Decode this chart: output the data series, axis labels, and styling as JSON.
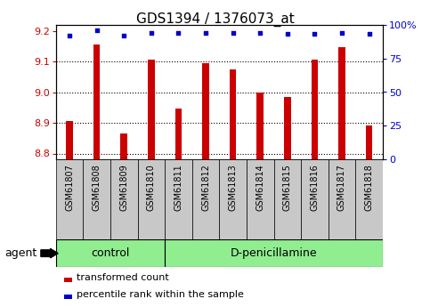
{
  "title": "GDS1394 / 1376073_at",
  "samples": [
    "GSM61807",
    "GSM61808",
    "GSM61809",
    "GSM61810",
    "GSM61811",
    "GSM61812",
    "GSM61813",
    "GSM61814",
    "GSM61815",
    "GSM61816",
    "GSM61817",
    "GSM61818"
  ],
  "transformed_count": [
    8.905,
    9.155,
    8.865,
    9.105,
    8.945,
    9.095,
    9.075,
    9.0,
    8.985,
    9.105,
    9.145,
    8.89
  ],
  "percentile_rank": [
    92,
    96,
    92,
    94,
    94,
    94,
    94,
    94,
    93,
    93,
    94,
    93
  ],
  "ylim_left": [
    8.78,
    9.22
  ],
  "ylim_right": [
    0,
    100
  ],
  "yticks_left": [
    8.8,
    8.9,
    9.0,
    9.1,
    9.2
  ],
  "yticks_right": [
    0,
    25,
    50,
    75,
    100
  ],
  "ytick_labels_right": [
    "0",
    "25",
    "50",
    "75",
    "100%"
  ],
  "bar_color": "#cc0000",
  "dot_color": "#0000cc",
  "control_samples": 4,
  "control_label": "control",
  "treatment_label": "D-penicillamine",
  "agent_label": "agent",
  "legend_bar_label": "transformed count",
  "legend_dot_label": "percentile rank within the sample",
  "green_bg": "#90ee90",
  "gray_bg": "#c8c8c8",
  "bar_bottom": 8.78,
  "bar_width": 0.25,
  "title_fontsize": 11,
  "tick_fontsize": 8,
  "sample_fontsize": 7,
  "legend_fontsize": 8,
  "agent_fontsize": 9
}
